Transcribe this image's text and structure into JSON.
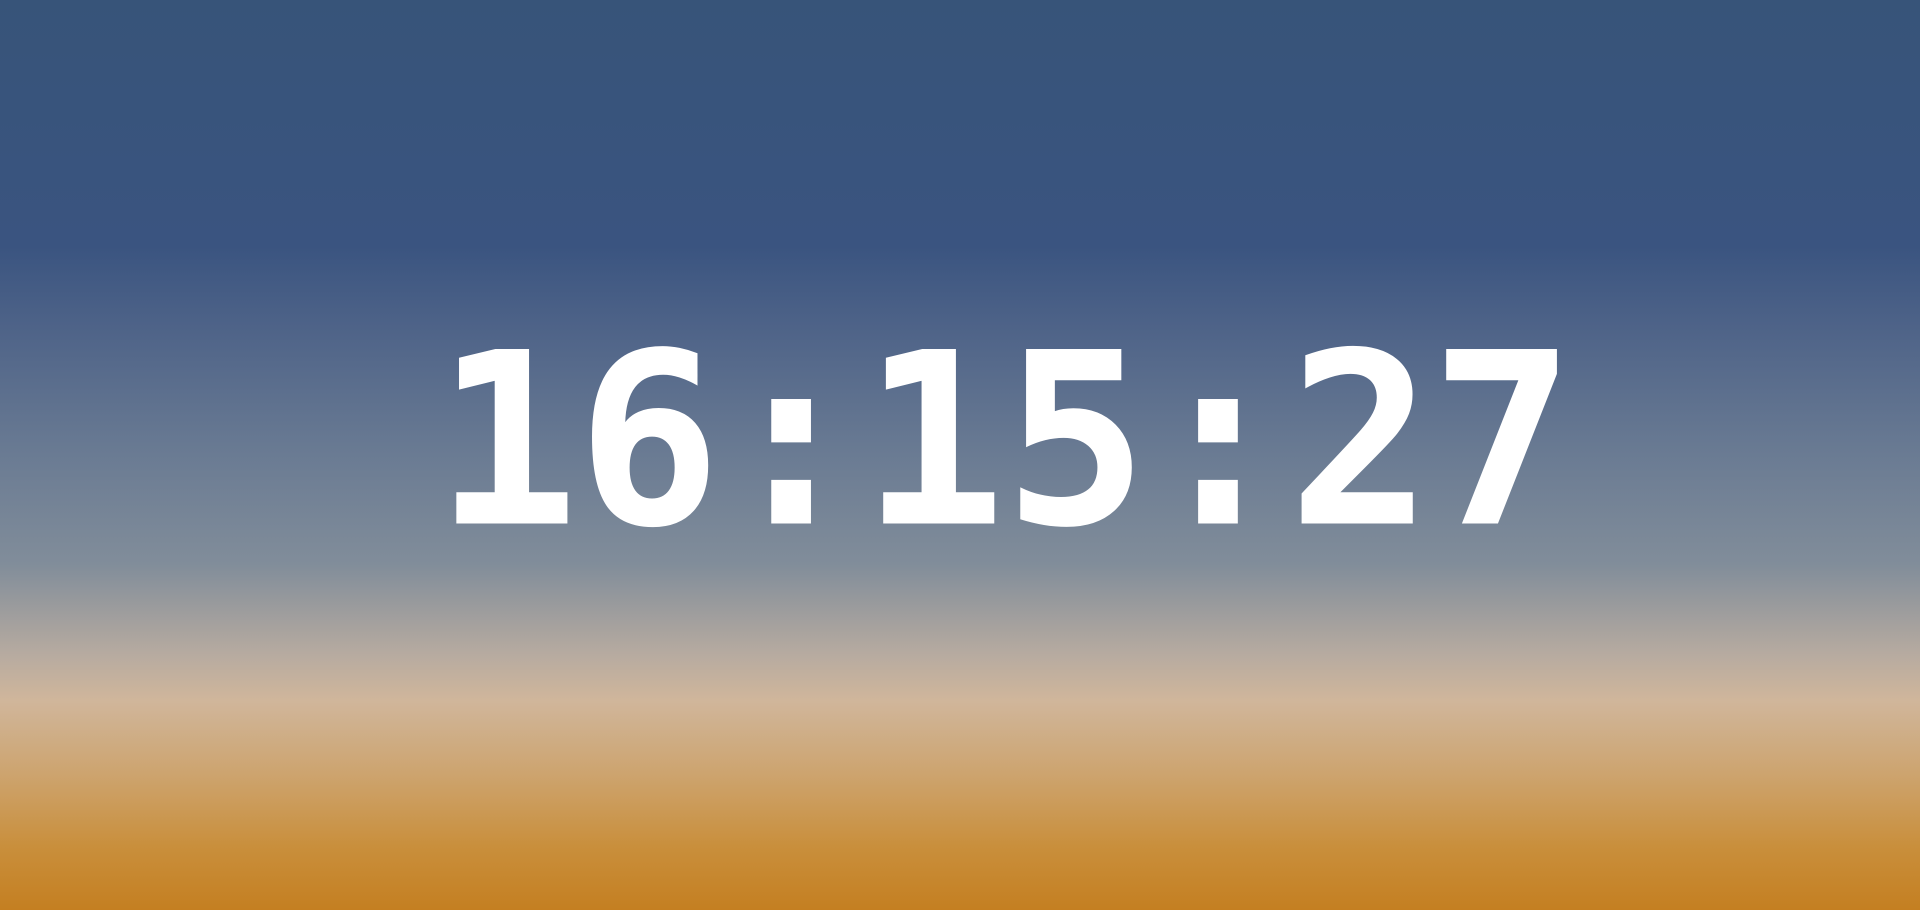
{
  "clock": {
    "time": "16:15:27"
  },
  "colors": {
    "sky_top": "#375479",
    "sky_mid": "#6a7b93",
    "horizon_light": "#d0b69b",
    "bottom_orange": "#c47f21",
    "clock_text": "#ffffff"
  }
}
